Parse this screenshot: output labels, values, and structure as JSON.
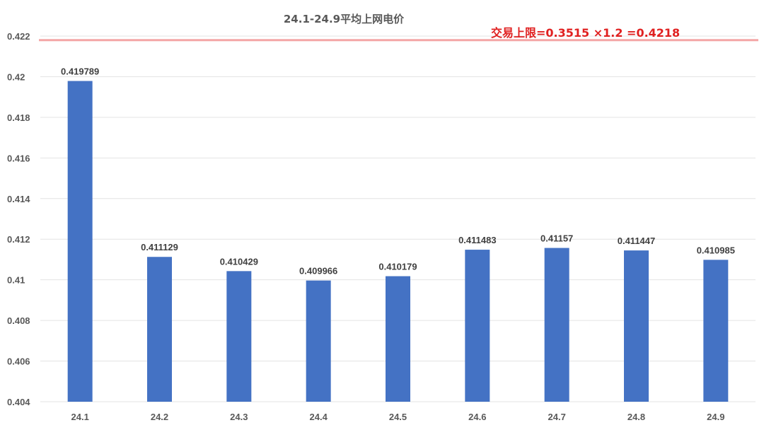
{
  "chart_data": {
    "type": "bar",
    "title": "24.1-24.9平均上网电价",
    "categories": [
      "24.1",
      "24.2",
      "24.3",
      "24.4",
      "24.5",
      "24.6",
      "24.7",
      "24.8",
      "24.9"
    ],
    "values": [
      0.419789,
      0.411129,
      0.410429,
      0.409966,
      0.410179,
      0.411483,
      0.41157,
      0.411447,
      0.410985
    ],
    "data_labels": [
      "0.419789",
      "0.411129",
      "0.410429",
      "0.409966",
      "0.410179",
      "0.411483",
      "0.41157",
      "0.411447",
      "0.410985"
    ],
    "yticks": [
      "0.404",
      "0.406",
      "0.408",
      "0.41",
      "0.412",
      "0.414",
      "0.416",
      "0.418",
      "0.42",
      "0.422"
    ],
    "ylim": [
      0.404,
      0.422
    ],
    "grid": true,
    "bar_color": "#4472C4",
    "reference_line": {
      "value": 0.4218,
      "label": "交易上限=0.3515 ×1.2 =0.4218",
      "color": "#F4A6A6",
      "label_color": "#E02020"
    }
  }
}
